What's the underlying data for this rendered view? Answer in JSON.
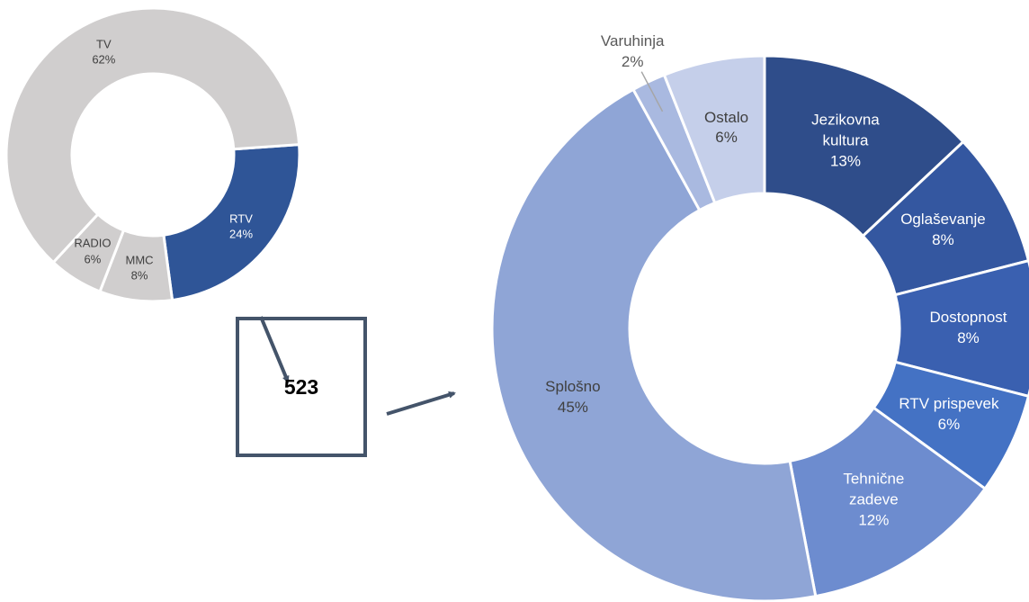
{
  "chart_data": [
    {
      "type": "donut",
      "categories": [
        "RTV",
        "MMC",
        "RADIO",
        "TV"
      ],
      "values": [
        24,
        8,
        6,
        62
      ],
      "value_labels": [
        "24%",
        "8%",
        "6%",
        "62%"
      ],
      "colors": [
        "#2f5597",
        "#d0cece",
        "#d0cece",
        "#d0cece"
      ],
      "start_angle": 86
    },
    {
      "type": "donut",
      "categories": [
        "Jezikovna kultura",
        "Oglaševanje",
        "Dostopnost",
        "RTV prispevek",
        "Tehnične zadeve",
        "Splošno",
        "Varuhinja",
        "Ostalo"
      ],
      "values": [
        13,
        8,
        8,
        6,
        12,
        45,
        2,
        6
      ],
      "value_labels": [
        "13%",
        "8%",
        "8%",
        "6%",
        "12%",
        "45%",
        "2%",
        "6%"
      ],
      "colors": [
        "#2f4d8a",
        "#3457a0",
        "#3a60b0",
        "#4472c4",
        "#6d8ccf",
        "#8fa5d6",
        "#a9b9e0",
        "#c5cfea"
      ],
      "start_angle": 0
    }
  ],
  "callout": {
    "value": 523
  }
}
